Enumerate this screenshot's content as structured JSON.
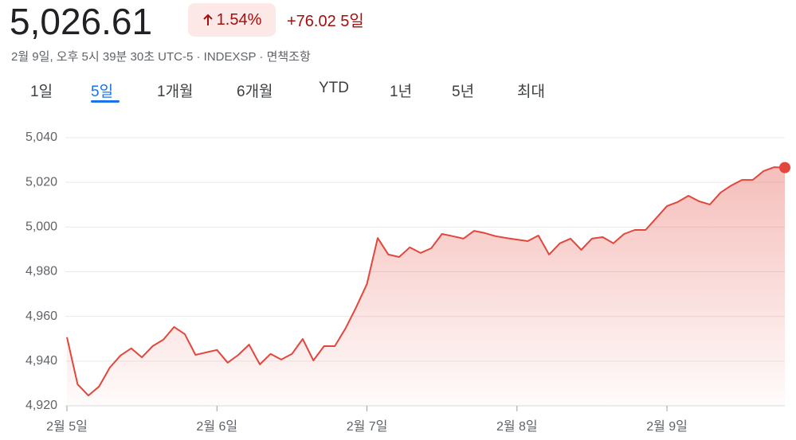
{
  "header": {
    "price": "5,026.61",
    "change_percent": "1.54%",
    "change": "+76.02 5일",
    "subtitle": "2월 9일, 오후 5시 39분 30초 UTC-5 · INDEXSP · 면책조항"
  },
  "tabs": [
    "1일",
    "5일",
    "1개월",
    "6개월",
    "YTD",
    "1년",
    "5년",
    "최대"
  ],
  "chart_data": {
    "type": "line",
    "color": "#e3463b",
    "x": [
      0,
      1,
      2,
      3,
      4,
      5,
      6,
      7,
      8,
      9,
      10,
      11,
      12,
      13,
      14,
      15,
      16,
      17,
      18,
      19,
      20,
      21,
      22,
      23,
      24,
      25,
      26,
      27,
      28,
      29,
      30,
      31,
      32,
      33,
      34,
      35,
      36,
      37,
      38,
      39,
      40,
      41,
      42,
      43,
      44,
      45,
      46,
      47,
      48,
      49,
      50,
      51,
      52,
      53,
      54,
      55,
      56,
      57,
      58,
      59,
      60,
      61,
      62,
      63,
      64,
      65,
      66,
      67
    ],
    "values": [
      4950.7,
      4929.6,
      4924.6,
      4928.6,
      4937.1,
      4942.5,
      4945.7,
      4941.7,
      4946.7,
      4949.6,
      4955.3,
      4952.1,
      4942.8,
      4943.9,
      4945,
      4939.3,
      4942.8,
      4947.4,
      4938.5,
      4943.2,
      4940.7,
      4943.2,
      4949.9,
      4940.3,
      4946.7,
      4946.7,
      4954.6,
      4964.2,
      4974.5,
      4995.1,
      4987.7,
      4986.6,
      4990.9,
      4988.4,
      4990.5,
      4996.9,
      4995.9,
      4994.8,
      4998.3,
      4997.3,
      4995.9,
      4995.1,
      4994.4,
      4993.7,
      4996.2,
      4987.7,
      4992.7,
      4994.8,
      4989.8,
      4994.8,
      4995.5,
      4992.7,
      4996.9,
      4998.7,
      4998.7,
      5004,
      5009.4,
      5011.2,
      5014,
      5011.5,
      5010.1,
      5015.4,
      5018.6,
      5021.1,
      5021.1,
      5025,
      5026.8,
      5026.6
    ],
    "xlim": [
      0,
      67
    ],
    "xticks": [
      {
        "value": 0,
        "label": "2월 5일"
      },
      {
        "value": 14,
        "label": "2월 6일"
      },
      {
        "value": 28,
        "label": "2월 7일"
      },
      {
        "value": 42,
        "label": "2월 8일"
      },
      {
        "value": 56,
        "label": "2월 9일"
      }
    ],
    "ylim": [
      4920,
      5040
    ],
    "yticks": [
      {
        "value": 4920,
        "label": "4,920"
      },
      {
        "value": 4940,
        "label": "4,940"
      },
      {
        "value": 4960,
        "label": "4,960"
      },
      {
        "value": 4980,
        "label": "4,980"
      },
      {
        "value": 5000,
        "label": "5,000"
      },
      {
        "value": 5020,
        "label": "5,020"
      },
      {
        "value": 5040,
        "label": "5,040"
      }
    ],
    "grid": true
  }
}
